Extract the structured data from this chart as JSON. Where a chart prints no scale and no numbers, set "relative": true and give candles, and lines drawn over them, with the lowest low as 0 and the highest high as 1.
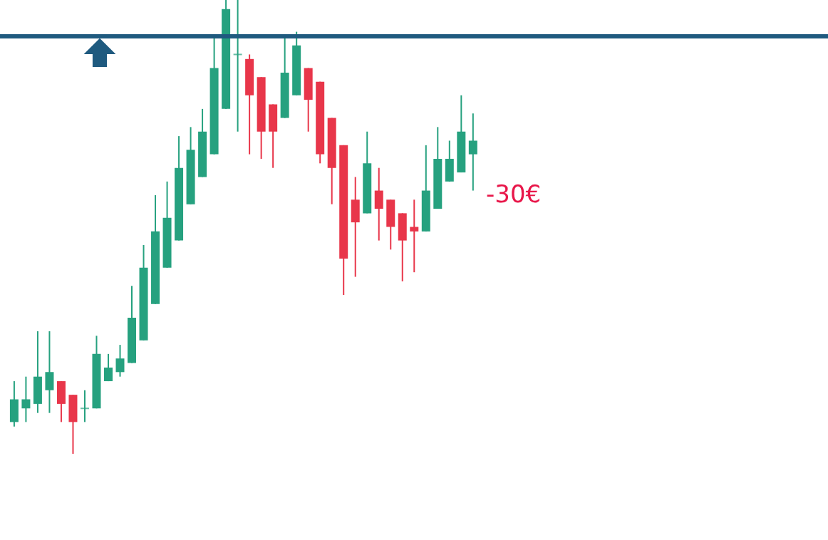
{
  "chart_data": {
    "type": "candlestick",
    "relative": true,
    "categories": [
      null,
      null,
      null,
      null,
      null,
      null,
      null,
      null,
      null,
      null,
      null,
      null,
      null,
      null,
      null,
      null,
      null,
      null,
      null,
      null,
      null,
      null,
      null,
      null,
      null,
      null,
      null,
      null,
      null,
      null,
      null,
      null,
      null,
      null,
      null,
      null,
      null,
      null,
      null,
      null
    ],
    "ohlc": [
      [
        0.07,
        0.16,
        0.06,
        0.12
      ],
      [
        0.1,
        0.17,
        0.07,
        0.12
      ],
      [
        0.11,
        0.27,
        0.09,
        0.17
      ],
      [
        0.14,
        0.27,
        0.09,
        0.18
      ],
      [
        0.16,
        0.16,
        0.07,
        0.11
      ],
      [
        0.13,
        0.13,
        0.0,
        0.07
      ],
      [
        0.1,
        0.14,
        0.07,
        0.1
      ],
      [
        0.1,
        0.26,
        0.1,
        0.22
      ],
      [
        0.16,
        0.22,
        0.16,
        0.19
      ],
      [
        0.18,
        0.24,
        0.17,
        0.21
      ],
      [
        0.2,
        0.37,
        0.2,
        0.3
      ],
      [
        0.25,
        0.46,
        0.25,
        0.41
      ],
      [
        0.33,
        0.57,
        0.33,
        0.49
      ],
      [
        0.41,
        0.6,
        0.41,
        0.52
      ],
      [
        0.47,
        0.7,
        0.47,
        0.63
      ],
      [
        0.55,
        0.72,
        0.55,
        0.67
      ],
      [
        0.61,
        0.76,
        0.61,
        0.71
      ],
      [
        0.66,
        0.92,
        0.66,
        0.85
      ],
      [
        0.76,
        1.0,
        0.76,
        0.98
      ],
      [
        0.88,
        1.0,
        0.71,
        0.88
      ],
      [
        0.87,
        0.88,
        0.66,
        0.79
      ],
      [
        0.83,
        0.83,
        0.65,
        0.71
      ],
      [
        0.77,
        0.77,
        0.63,
        0.71
      ],
      [
        0.74,
        0.92,
        0.74,
        0.84
      ],
      [
        0.79,
        0.93,
        0.79,
        0.9
      ],
      [
        0.85,
        0.85,
        0.71,
        0.78
      ],
      [
        0.82,
        0.82,
        0.64,
        0.66
      ],
      [
        0.74,
        0.74,
        0.55,
        0.63
      ],
      [
        0.68,
        0.68,
        0.35,
        0.43
      ],
      [
        0.56,
        0.61,
        0.39,
        0.51
      ],
      [
        0.53,
        0.71,
        0.53,
        0.64
      ],
      [
        0.58,
        0.63,
        0.47,
        0.54
      ],
      [
        0.56,
        0.56,
        0.45,
        0.5
      ],
      [
        0.53,
        0.53,
        0.38,
        0.47
      ],
      [
        0.5,
        0.56,
        0.4,
        0.49
      ],
      [
        0.49,
        0.68,
        0.49,
        0.58
      ],
      [
        0.54,
        0.72,
        0.54,
        0.65
      ],
      [
        0.6,
        0.69,
        0.6,
        0.65
      ],
      [
        0.62,
        0.79,
        0.62,
        0.71
      ],
      [
        0.66,
        0.75,
        0.58,
        0.69
      ]
    ],
    "colors": [
      "#26a17f",
      "#26a17f",
      "#26a17f",
      "#26a17f",
      "#e8364a",
      "#e8364a",
      "#26a17f",
      "#26a17f",
      "#26a17f",
      "#26a17f",
      "#26a17f",
      "#26a17f",
      "#26a17f",
      "#26a17f",
      "#26a17f",
      "#26a17f",
      "#26a17f",
      "#26a17f",
      "#26a17f",
      "#26a17f",
      "#e8364a",
      "#e8364a",
      "#e8364a",
      "#26a17f",
      "#26a17f",
      "#e8364a",
      "#e8364a",
      "#e8364a",
      "#e8364a",
      "#e8364a",
      "#26a17f",
      "#e8364a",
      "#e8364a",
      "#e8364a",
      "#e8364a",
      "#26a17f",
      "#26a17f",
      "#26a17f",
      "#26a17f",
      "#26a17f"
    ],
    "ref_lines": [
      {
        "axis": "y",
        "value": 0.92,
        "color": "#1f5a7f"
      }
    ],
    "annotations": [
      "-30€"
    ]
  }
}
